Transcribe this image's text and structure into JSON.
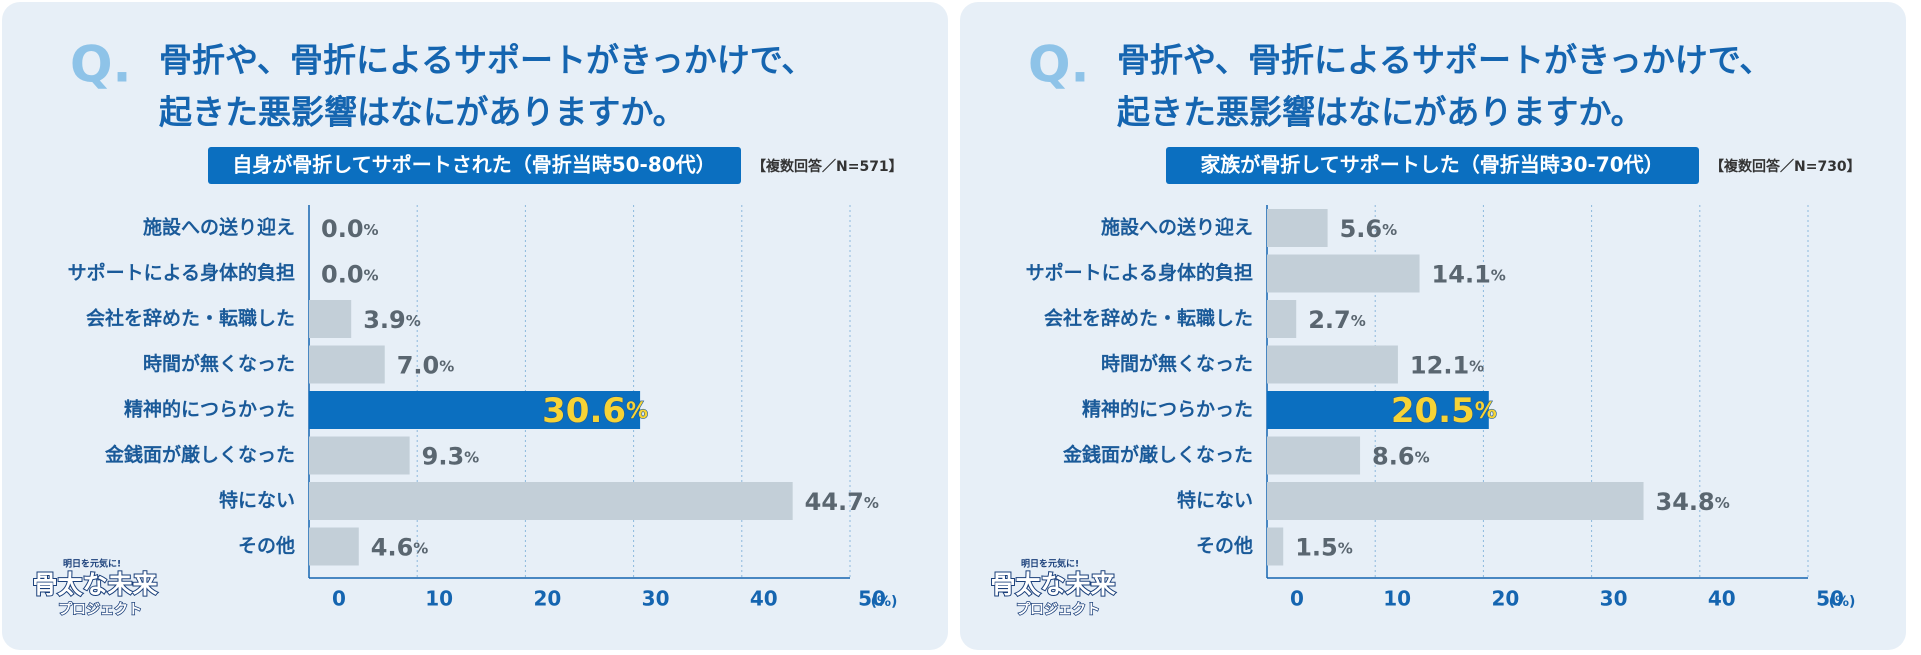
{
  "chart_data": [
    {
      "type": "bar",
      "orientation": "horizontal",
      "q_mark": "Q.",
      "title": [
        "骨折や、骨折によるサポートがきっかけで、",
        "起きた悪影響はなにがありますか。"
      ],
      "subtitle": "自身が骨折してサポートされた（骨折当時50-80代）",
      "note": "【複数回答／N=571】",
      "categories": [
        "施設への送り迎え",
        "サポートによる身体的負担",
        "会社を辞めた・転職した",
        "時間が無くなった",
        "精神的につらかった",
        "金銭面が厳しくなった",
        "特にない",
        "その他"
      ],
      "values": [
        0.0,
        0.0,
        3.9,
        7.0,
        30.6,
        9.3,
        44.7,
        4.6
      ],
      "value_labels": [
        "0.0",
        "0.0",
        "3.9",
        "7.0",
        "30.6",
        "9.3",
        "44.7",
        "4.6"
      ],
      "unit_label": "%",
      "colors": [
        "#c3cfd8",
        "#c3cfd8",
        "#c3cfd8",
        "#c3cfd8",
        "#0b6fc0",
        "#c3cfd8",
        "#c3cfd8",
        "#c3cfd8"
      ],
      "highlight_index": 4,
      "xlim": [
        0,
        50
      ],
      "xticks": [
        0,
        10,
        20,
        30,
        40,
        50
      ],
      "x_label": "(%)",
      "grid": true
    },
    {
      "type": "bar",
      "orientation": "horizontal",
      "q_mark": "Q.",
      "title": [
        "骨折や、骨折によるサポートがきっかけで、",
        "起きた悪影響はなにがありますか。"
      ],
      "subtitle": "家族が骨折してサポートした（骨折当時30-70代）",
      "note": "【複数回答／N=730】",
      "categories": [
        "施設への送り迎え",
        "サポートによる身体的負担",
        "会社を辞めた・転職した",
        "時間が無くなった",
        "精神的につらかった",
        "金銭面が厳しくなった",
        "特にない",
        "その他"
      ],
      "values": [
        5.6,
        14.1,
        2.7,
        12.1,
        20.5,
        8.6,
        34.8,
        1.5
      ],
      "value_labels": [
        "5.6",
        "14.1",
        "2.7",
        "12.1",
        "20.5",
        "8.6",
        "34.8",
        "1.5"
      ],
      "unit_label": "%",
      "colors": [
        "#c3cfd8",
        "#c3cfd8",
        "#c3cfd8",
        "#c3cfd8",
        "#0b6fc0",
        "#c3cfd8",
        "#c3cfd8",
        "#c3cfd8"
      ],
      "highlight_index": 4,
      "xlim": [
        0,
        50
      ],
      "xticks": [
        0,
        10,
        20,
        30,
        40,
        50
      ],
      "x_label": "(%)",
      "grid": true
    }
  ],
  "logo": {
    "tagline": "明日を元気に!",
    "name": "骨太な未来",
    "sub": "プロジェクト"
  }
}
